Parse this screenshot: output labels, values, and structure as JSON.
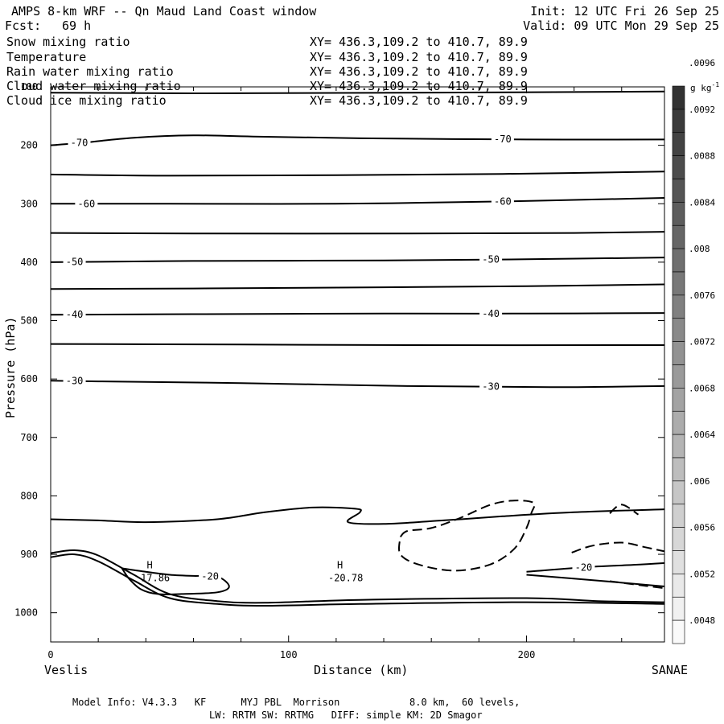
{
  "header": {
    "title": "AMPS 8-km WRF -- Qn Maud Land Coast window",
    "init": "Init: 12 UTC Fri 26 Sep 25",
    "fcst_label": "Fcst:",
    "fcst_value": "69 h",
    "valid": "Valid: 09 UTC Mon 29 Sep 25"
  },
  "fields": [
    {
      "name": "Snow mixing ratio",
      "xy": "XY= 436.3,109.2 to 410.7, 89.9",
      "color": "#000000"
    },
    {
      "name": "Temperature",
      "xy": "XY= 436.3,109.2 to 410.7, 89.9",
      "color": "#000000"
    },
    {
      "name": "Rain water mixing ratio",
      "xy": "XY= 436.3,109.2 to 410.7, 89.9",
      "color": "#e00000"
    },
    {
      "name": "Cloud water mixing ratio",
      "xy": "XY= 436.3,109.2 to 410.7, 89.9",
      "color": "#1010c0"
    },
    {
      "name": "Cloud ice mixing ratio",
      "xy": "XY= 436.3,109.2 to 410.7, 89.9",
      "color": "#000000"
    }
  ],
  "footer": {
    "line1": "Model Info: V4.3.3   KF      MYJ PBL  Morrison            8.0 km,  60 levels,",
    "line2": "LW: RRTM SW: RRTMG   DIFF: simple KM: 2D Smagor"
  },
  "chart_data": {
    "type": "contour-cross-section",
    "xlabel": "Distance (km)",
    "ylabel": "Pressure (hPa)",
    "xlim": [
      0,
      258
    ],
    "ylim": [
      1050,
      100
    ],
    "x_ticks": [
      0,
      100,
      200
    ],
    "y_ticks": [
      100,
      200,
      300,
      400,
      500,
      600,
      700,
      800,
      900,
      1000
    ],
    "left_endpoint": "Veslis",
    "right_endpoint": "SANAE",
    "colorbar": {
      "unit": "g kg",
      "unit_sup": "-1",
      "ticks": [
        ".0048",
        ".0052",
        ".0056",
        ".006",
        ".0064",
        ".0068",
        ".0072",
        ".0076",
        ".008",
        ".0084",
        ".0088",
        ".0092",
        ".0096"
      ],
      "steps": 24
    },
    "temperature_contours": [
      {
        "name": "t-contour-top",
        "label": "",
        "points": [
          [
            0,
            110
          ],
          [
            60,
            111
          ],
          [
            150,
            110
          ],
          [
            258,
            108
          ]
        ]
      },
      {
        "name": "t-contour-m70",
        "label": "-70",
        "points": [
          [
            0,
            200
          ],
          [
            15,
            195
          ],
          [
            35,
            187
          ],
          [
            60,
            183
          ],
          [
            85,
            185
          ],
          [
            130,
            188
          ],
          [
            200,
            190
          ],
          [
            258,
            190
          ]
        ]
      },
      {
        "name": "t-contour-m65",
        "label": "",
        "points": [
          [
            0,
            250
          ],
          [
            50,
            252
          ],
          [
            120,
            251
          ],
          [
            190,
            249
          ],
          [
            258,
            245
          ]
        ]
      },
      {
        "name": "t-contour-m60",
        "label": "-60",
        "points": [
          [
            0,
            300
          ],
          [
            50,
            300
          ],
          [
            120,
            300
          ],
          [
            190,
            296
          ],
          [
            258,
            290
          ]
        ]
      },
      {
        "name": "t-contour-m55",
        "label": "",
        "points": [
          [
            0,
            350
          ],
          [
            60,
            351
          ],
          [
            150,
            351
          ],
          [
            220,
            350
          ],
          [
            258,
            348
          ]
        ]
      },
      {
        "name": "t-contour-m50",
        "label": "-50",
        "points": [
          [
            0,
            400
          ],
          [
            60,
            398
          ],
          [
            140,
            397
          ],
          [
            200,
            395
          ],
          [
            258,
            392
          ]
        ]
      },
      {
        "name": "t-contour-m45",
        "label": "",
        "points": [
          [
            0,
            446
          ],
          [
            60,
            445
          ],
          [
            140,
            443
          ],
          [
            200,
            441
          ],
          [
            258,
            438
          ]
        ]
      },
      {
        "name": "t-contour-m40",
        "label": "-40",
        "points": [
          [
            0,
            490
          ],
          [
            60,
            489
          ],
          [
            140,
            488
          ],
          [
            200,
            488
          ],
          [
            258,
            487
          ]
        ]
      },
      {
        "name": "t-contour-m35",
        "label": "",
        "points": [
          [
            0,
            540
          ],
          [
            80,
            541
          ],
          [
            150,
            542
          ],
          [
            258,
            542
          ]
        ]
      },
      {
        "name": "t-contour-m30",
        "label": "-30",
        "points": [
          [
            0,
            603
          ],
          [
            20,
            604
          ],
          [
            80,
            607
          ],
          [
            150,
            612
          ],
          [
            210,
            614
          ],
          [
            258,
            612
          ]
        ]
      },
      {
        "name": "t-contour-m25",
        "label": "",
        "points": [
          [
            0,
            840
          ],
          [
            20,
            842
          ],
          [
            40,
            845
          ],
          [
            70,
            840
          ],
          [
            90,
            828
          ],
          [
            110,
            820
          ],
          [
            128,
            822
          ],
          [
            130,
            828
          ],
          [
            125,
            845
          ],
          [
            140,
            848
          ],
          [
            165,
            842
          ],
          [
            190,
            835
          ],
          [
            220,
            828
          ],
          [
            258,
            823
          ]
        ]
      },
      {
        "name": "t-contour-m20",
        "label": "-20",
        "points": [
          [
            30,
            924
          ],
          [
            40,
            930
          ],
          [
            50,
            935
          ],
          [
            60,
            937
          ],
          [
            70,
            938
          ],
          [
            75,
            955
          ],
          [
            70,
            965
          ],
          [
            55,
            968
          ],
          [
            45,
            968
          ],
          [
            38,
            960
          ],
          [
            33,
            942
          ],
          [
            30,
            924
          ]
        ]
      },
      {
        "name": "t-contour-m20b",
        "label": "-20",
        "points": [
          [
            200,
            930
          ],
          [
            225,
            922
          ],
          [
            245,
            918
          ],
          [
            258,
            915
          ]
        ]
      },
      {
        "name": "t-contour-m22",
        "label": "",
        "points": [
          [
            200,
            935
          ],
          [
            230,
            945
          ],
          [
            258,
            955
          ]
        ]
      },
      {
        "name": "t-contour-surf1",
        "label": "",
        "points": [
          [
            0,
            898
          ],
          [
            10,
            893
          ],
          [
            20,
            902
          ],
          [
            35,
            935
          ],
          [
            50,
            968
          ],
          [
            70,
            980
          ],
          [
            90,
            983
          ],
          [
            130,
            978
          ],
          [
            200,
            975
          ],
          [
            230,
            980
          ],
          [
            258,
            982
          ]
        ]
      },
      {
        "name": "t-contour-surf2",
        "label": "",
        "points": [
          [
            0,
            905
          ],
          [
            10,
            900
          ],
          [
            20,
            912
          ],
          [
            35,
            945
          ],
          [
            50,
            975
          ],
          [
            70,
            985
          ],
          [
            90,
            988
          ],
          [
            130,
            985
          ],
          [
            200,
            982
          ],
          [
            258,
            985
          ]
        ]
      }
    ],
    "dashed_contours": [
      {
        "name": "cloud-ice-contour-1",
        "points": [
          [
            147,
            870
          ],
          [
            150,
            860
          ],
          [
            160,
            855
          ],
          [
            172,
            838
          ],
          [
            185,
            815
          ],
          [
            195,
            808
          ],
          [
            203,
            812
          ],
          [
            202,
            830
          ],
          [
            200,
            855
          ],
          [
            195,
            890
          ],
          [
            185,
            917
          ],
          [
            170,
            928
          ],
          [
            155,
            918
          ],
          [
            147,
            900
          ],
          [
            147,
            870
          ]
        ]
      },
      {
        "name": "cloud-ice-contour-2",
        "points": [
          [
            219,
            897
          ],
          [
            228,
            885
          ],
          [
            240,
            880
          ],
          [
            250,
            888
          ],
          [
            258,
            895
          ]
        ]
      },
      {
        "name": "cloud-ice-contour-3",
        "points": [
          [
            235,
            830
          ],
          [
            240,
            815
          ],
          [
            247,
            832
          ]
        ]
      },
      {
        "name": "cloud-ice-contour-4",
        "points": [
          [
            235,
            946
          ],
          [
            248,
            953
          ],
          [
            258,
            958
          ]
        ]
      }
    ],
    "highs": [
      {
        "label": "H",
        "value": "17.86",
        "x": 45,
        "p": 968
      },
      {
        "label": "H",
        "value": "-20.78",
        "x": 125,
        "p": 968
      }
    ]
  }
}
